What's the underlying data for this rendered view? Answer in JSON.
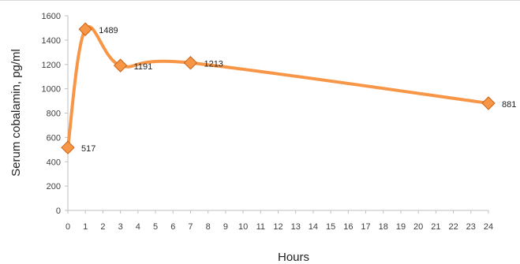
{
  "chart_data": {
    "type": "line",
    "xlabel": "Hours",
    "ylabel": "Serum cobalamin, pg/ml",
    "xlim": [
      0,
      24
    ],
    "ylim": [
      0,
      1600
    ],
    "x_ticks": [
      "0",
      "1",
      "2",
      "3",
      "4",
      "5",
      "6",
      "7",
      "8",
      "9",
      "10",
      "11",
      "12",
      "13",
      "14",
      "15",
      "16",
      "17",
      "18",
      "19",
      "20",
      "21",
      "22",
      "23",
      "24"
    ],
    "y_ticks": [
      "0",
      "200",
      "400",
      "600",
      "800",
      "1000",
      "1200",
      "1400",
      "1600"
    ],
    "series": [
      {
        "x": [
          0,
          1,
          3,
          7,
          24
        ],
        "values": [
          517,
          1489,
          1191,
          1213,
          881
        ],
        "labels": [
          "517",
          "1489",
          "1191",
          "1213",
          "881"
        ]
      }
    ],
    "grid": false,
    "colors": {
      "line": "#f79646",
      "marker": "#f79646",
      "marker_edge": "#c8641a",
      "axis": "#bfbfbf"
    }
  }
}
